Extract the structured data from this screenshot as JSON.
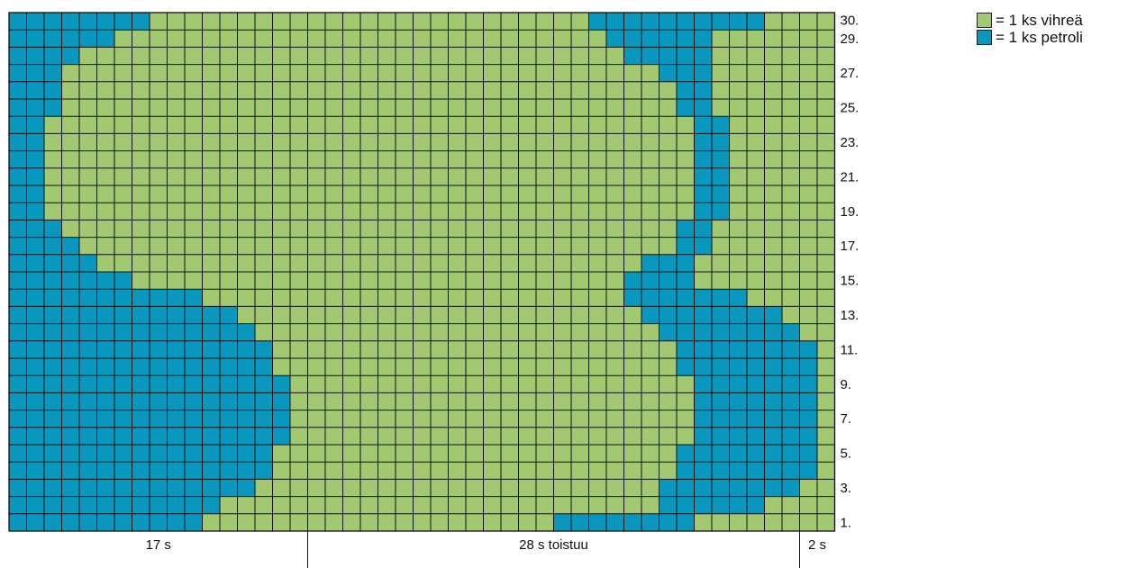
{
  "colors": {
    "green": "#a2c872",
    "blue": "#0a97bd",
    "grid_line": "#111111",
    "background": "#ffffff"
  },
  "legend": [
    {
      "color_key": "green",
      "text": "= 1 ks vihreä"
    },
    {
      "color_key": "blue",
      "text": "= 1 ks petroli"
    }
  ],
  "row_labels": [
    "30.",
    "29.",
    "27.",
    "25.",
    "23.",
    "21.",
    "19.",
    "17.",
    "15.",
    "13.",
    "11.",
    "9.",
    "7.",
    "5.",
    "3.",
    "1."
  ],
  "row_label_numbers": [
    30,
    29,
    27,
    25,
    23,
    21,
    19,
    17,
    15,
    13,
    11,
    9,
    7,
    5,
    3,
    1
  ],
  "bottom_sections": [
    {
      "label": "17 s",
      "stitches": 17
    },
    {
      "label": "28 s toistuu",
      "stitches": 28
    },
    {
      "label": "2 s",
      "stitches": 2
    }
  ],
  "grid": {
    "columns": 47,
    "rows": 30,
    "pattern_rows_top_to_bottom": [
      "BBBBBBBBGGGGGGGGGGGGGGGGGGGGGGGGGBBBBBBBBBBGGGG",
      "BBBBBBGGGGGGGGGGGGGGGGGGGGGGGGGGGGBBBBBBGGGGGGG",
      "BBBBGGGGGGGGGGGGGGGGGGGGGGGGGGGGGGGBBBBBGGGGGGG",
      "BBBGGGGGGGGGGGGGGGGGGGGGGGGGGGGGGGGGGBBBGGGGGGG",
      "BBBGGGGGGGGGGGGGGGGGGGGGGGGGGGGGGGGGGGBBGGGGGGG",
      "BBBGGGGGGGGGGGGGGGGGGGGGGGGGGGGGGGGGGGBBGGGGGGG",
      "BBGGGGGGGGGGGGGGGGGGGGGGGGGGGGGGGGGGGGGBBGGGGGG",
      "BBGGGGGGGGGGGGGGGGGGGGGGGGGGGGGGGGGGGGGBBGGGGGG",
      "BBGGGGGGGGGGGGGGGGGGGGGGGGGGGGGGGGGGGGGBBGGGGGG",
      "BBGGGGGGGGGGGGGGGGGGGGGGGGGGGGGGGGGGGGGBBGGGGGG",
      "BBGGGGGGGGGGGGGGGGGGGGGGGGGGGGGGGGGGGGGBBGGGGGG",
      "BBGGGGGGGGGGGGGGGGGGGGGGGGGGGGGGGGGGGGGBBGGGGGG",
      "BBBGGGGGGGGGGGGGGGGGGGGGGGGGGGGGGGGGGGBBGGGGGGG",
      "BBBBGGGGGGGGGGGGGGGGGGGGGGGGGGGGGGGGGGBBGGGGGGG",
      "BBBBBGGGGGGGGGGGGGGGGGGGGGGGGGGGGGGGBBBGGGGGGGG",
      "BBBBBBBGGGGGGGGGGGGGGGGGGGGGGGGGGGGBBBBGGGGGGGG",
      "BBBBBBBBBBBGGGGGGGGGGGGGGGGGGGGGGGGBBBBBBBGGGGG",
      "BBBBBBBBBBBBBGGGGGGGGGGGGGGGGGGGGGGGBBBBBBBBGGG",
      "BBBBBBBBBBBBBBGGGGGGGGGGGGGGGGGGGGGGGBBBBBBBBGG",
      "BBBBBBBBBBBBBBBGGGGGGGGGGGGGGGGGGGGGGGBBBBBBBBG",
      "BBBBBBBBBBBBBBBGGGGGGGGGGGGGGGGGGGGGGGBBBBBBBBG",
      "BBBBBBBBBBBBBBBBGGGGGGGGGGGGGGGGGGGGGGGBBBBBBBG",
      "BBBBBBBBBBBBBBBBGGGGGGGGGGGGGGGGGGGGGGGBBBBBBBG",
      "BBBBBBBBBBBBBBBBGGGGGGGGGGGGGGGGGGGGGGGBBBBBBBG",
      "BBBBBBBBBBBBBBBBGGGGGGGGGGGGGGGGGGGGGGGBBBBBBBG",
      "BBBBBBBBBBBBBBBGGGGGGGGGGGGGGGGGGGGGGGBBBBBBBBG",
      "BBBBBBBBBBBBBBBGGGGGGGGGGGGGGGGGGGGGGGBBBBBBBBG",
      "BBBBBBBBBBBBBBGGGGGGGGGGGGGGGGGGGGGGGBBBBBBBBGG",
      "BBBBBBBBBBBBGGGGGGGGGGGGGGGGGGGGGGGGGBBBBBBGGGG",
      "BBBBBBBBBBBGGGGGGGGGGGGGGGGGGGGBBBBBBBBGGGGGGGG"
    ]
  }
}
